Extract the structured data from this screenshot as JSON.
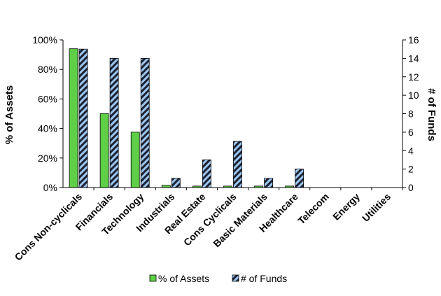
{
  "chart_data": {
    "type": "bar",
    "categories": [
      "Cons Non-cyclicals",
      "Financials",
      "Technology",
      "Industrials",
      "Real Estate",
      "Cons Cyclicals",
      "Basic Materials",
      "Healthcare",
      "Telecom",
      "Energy",
      "Utilities"
    ],
    "series": [
      {
        "name": "% of Assets",
        "axis": "left",
        "values": [
          94,
          50,
          37.5,
          1.5,
          1,
          1,
          1,
          1,
          0,
          0,
          0
        ],
        "color": "#5ecf46",
        "pattern": "solid"
      },
      {
        "name": "# of Funds",
        "axis": "right",
        "values": [
          15,
          14,
          14,
          1,
          3,
          5,
          1,
          2,
          0,
          0,
          0
        ],
        "color": "#9ec6ee",
        "pattern": "diagonal-stripes-dark"
      }
    ],
    "ylabel": "% of Assets",
    "y2label": "# of Funds",
    "ylim": [
      0,
      100
    ],
    "y2lim": [
      0,
      16
    ],
    "yticks": [
      "0%",
      "20%",
      "40%",
      "60%",
      "80%",
      "100%"
    ],
    "y2ticks": [
      "0",
      "2",
      "4",
      "6",
      "8",
      "10",
      "12",
      "14",
      "16"
    ],
    "grid": false,
    "legend_position": "bottom"
  }
}
